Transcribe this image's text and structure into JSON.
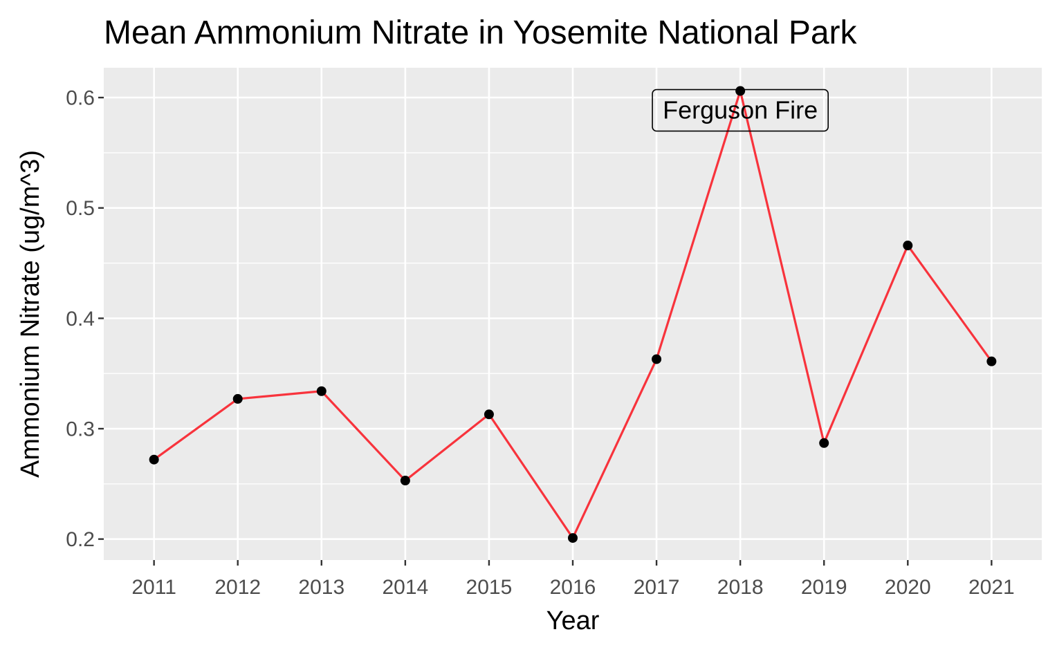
{
  "chart_data": {
    "type": "line",
    "title": "Mean Ammonium Nitrate in Yosemite National Park",
    "xlabel": "Year",
    "ylabel": "Ammonium Nitrate (ug/m^3)",
    "x": [
      "2011",
      "2012",
      "2013",
      "2014",
      "2015",
      "2016",
      "2017",
      "2018",
      "2019",
      "2020",
      "2021"
    ],
    "series": [
      {
        "values": [
          0.272,
          0.327,
          0.334,
          0.253,
          0.313,
          0.201,
          0.363,
          0.606,
          0.287,
          0.466,
          0.361
        ],
        "line_color": "#f8333c",
        "point_color": "#000000"
      }
    ],
    "ylim": [
      0.181,
      0.627
    ],
    "yticks": [
      0.2,
      0.3,
      0.4,
      0.5,
      0.6
    ],
    "ytick_labels": [
      "0.2",
      "0.3",
      "0.4",
      "0.5",
      "0.6"
    ],
    "grid": true,
    "panel_color": "#ebebeb",
    "annotations": [
      {
        "text": "Ferguson Fire",
        "x": "2018",
        "y": 0.606
      }
    ]
  }
}
